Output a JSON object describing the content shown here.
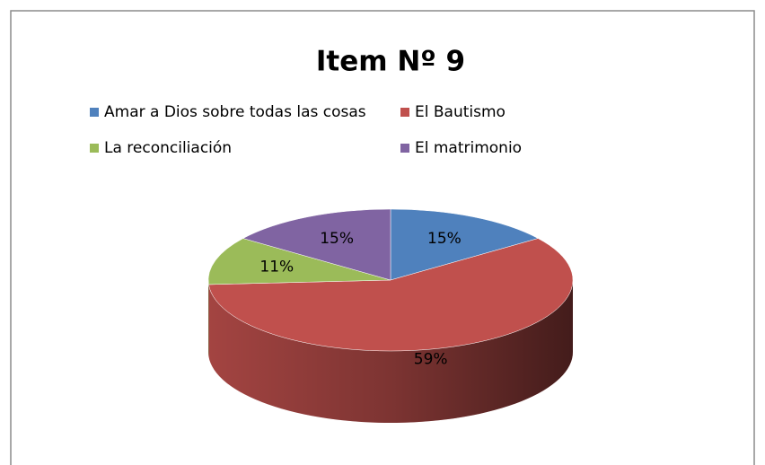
{
  "chart_data": {
    "type": "pie",
    "title": "Item Nº 9",
    "categories": [
      "Amar a Dios sobre todas las cosas",
      "El Bautismo",
      "La reconciliación",
      "El matrimonio"
    ],
    "values": [
      15,
      59,
      11,
      15
    ],
    "value_labels": [
      "15%",
      "59%",
      "11%",
      "15%"
    ],
    "colors": [
      "#4f81bd",
      "#c0504d",
      "#9bbb59",
      "#8064a2"
    ],
    "legend": "top"
  }
}
